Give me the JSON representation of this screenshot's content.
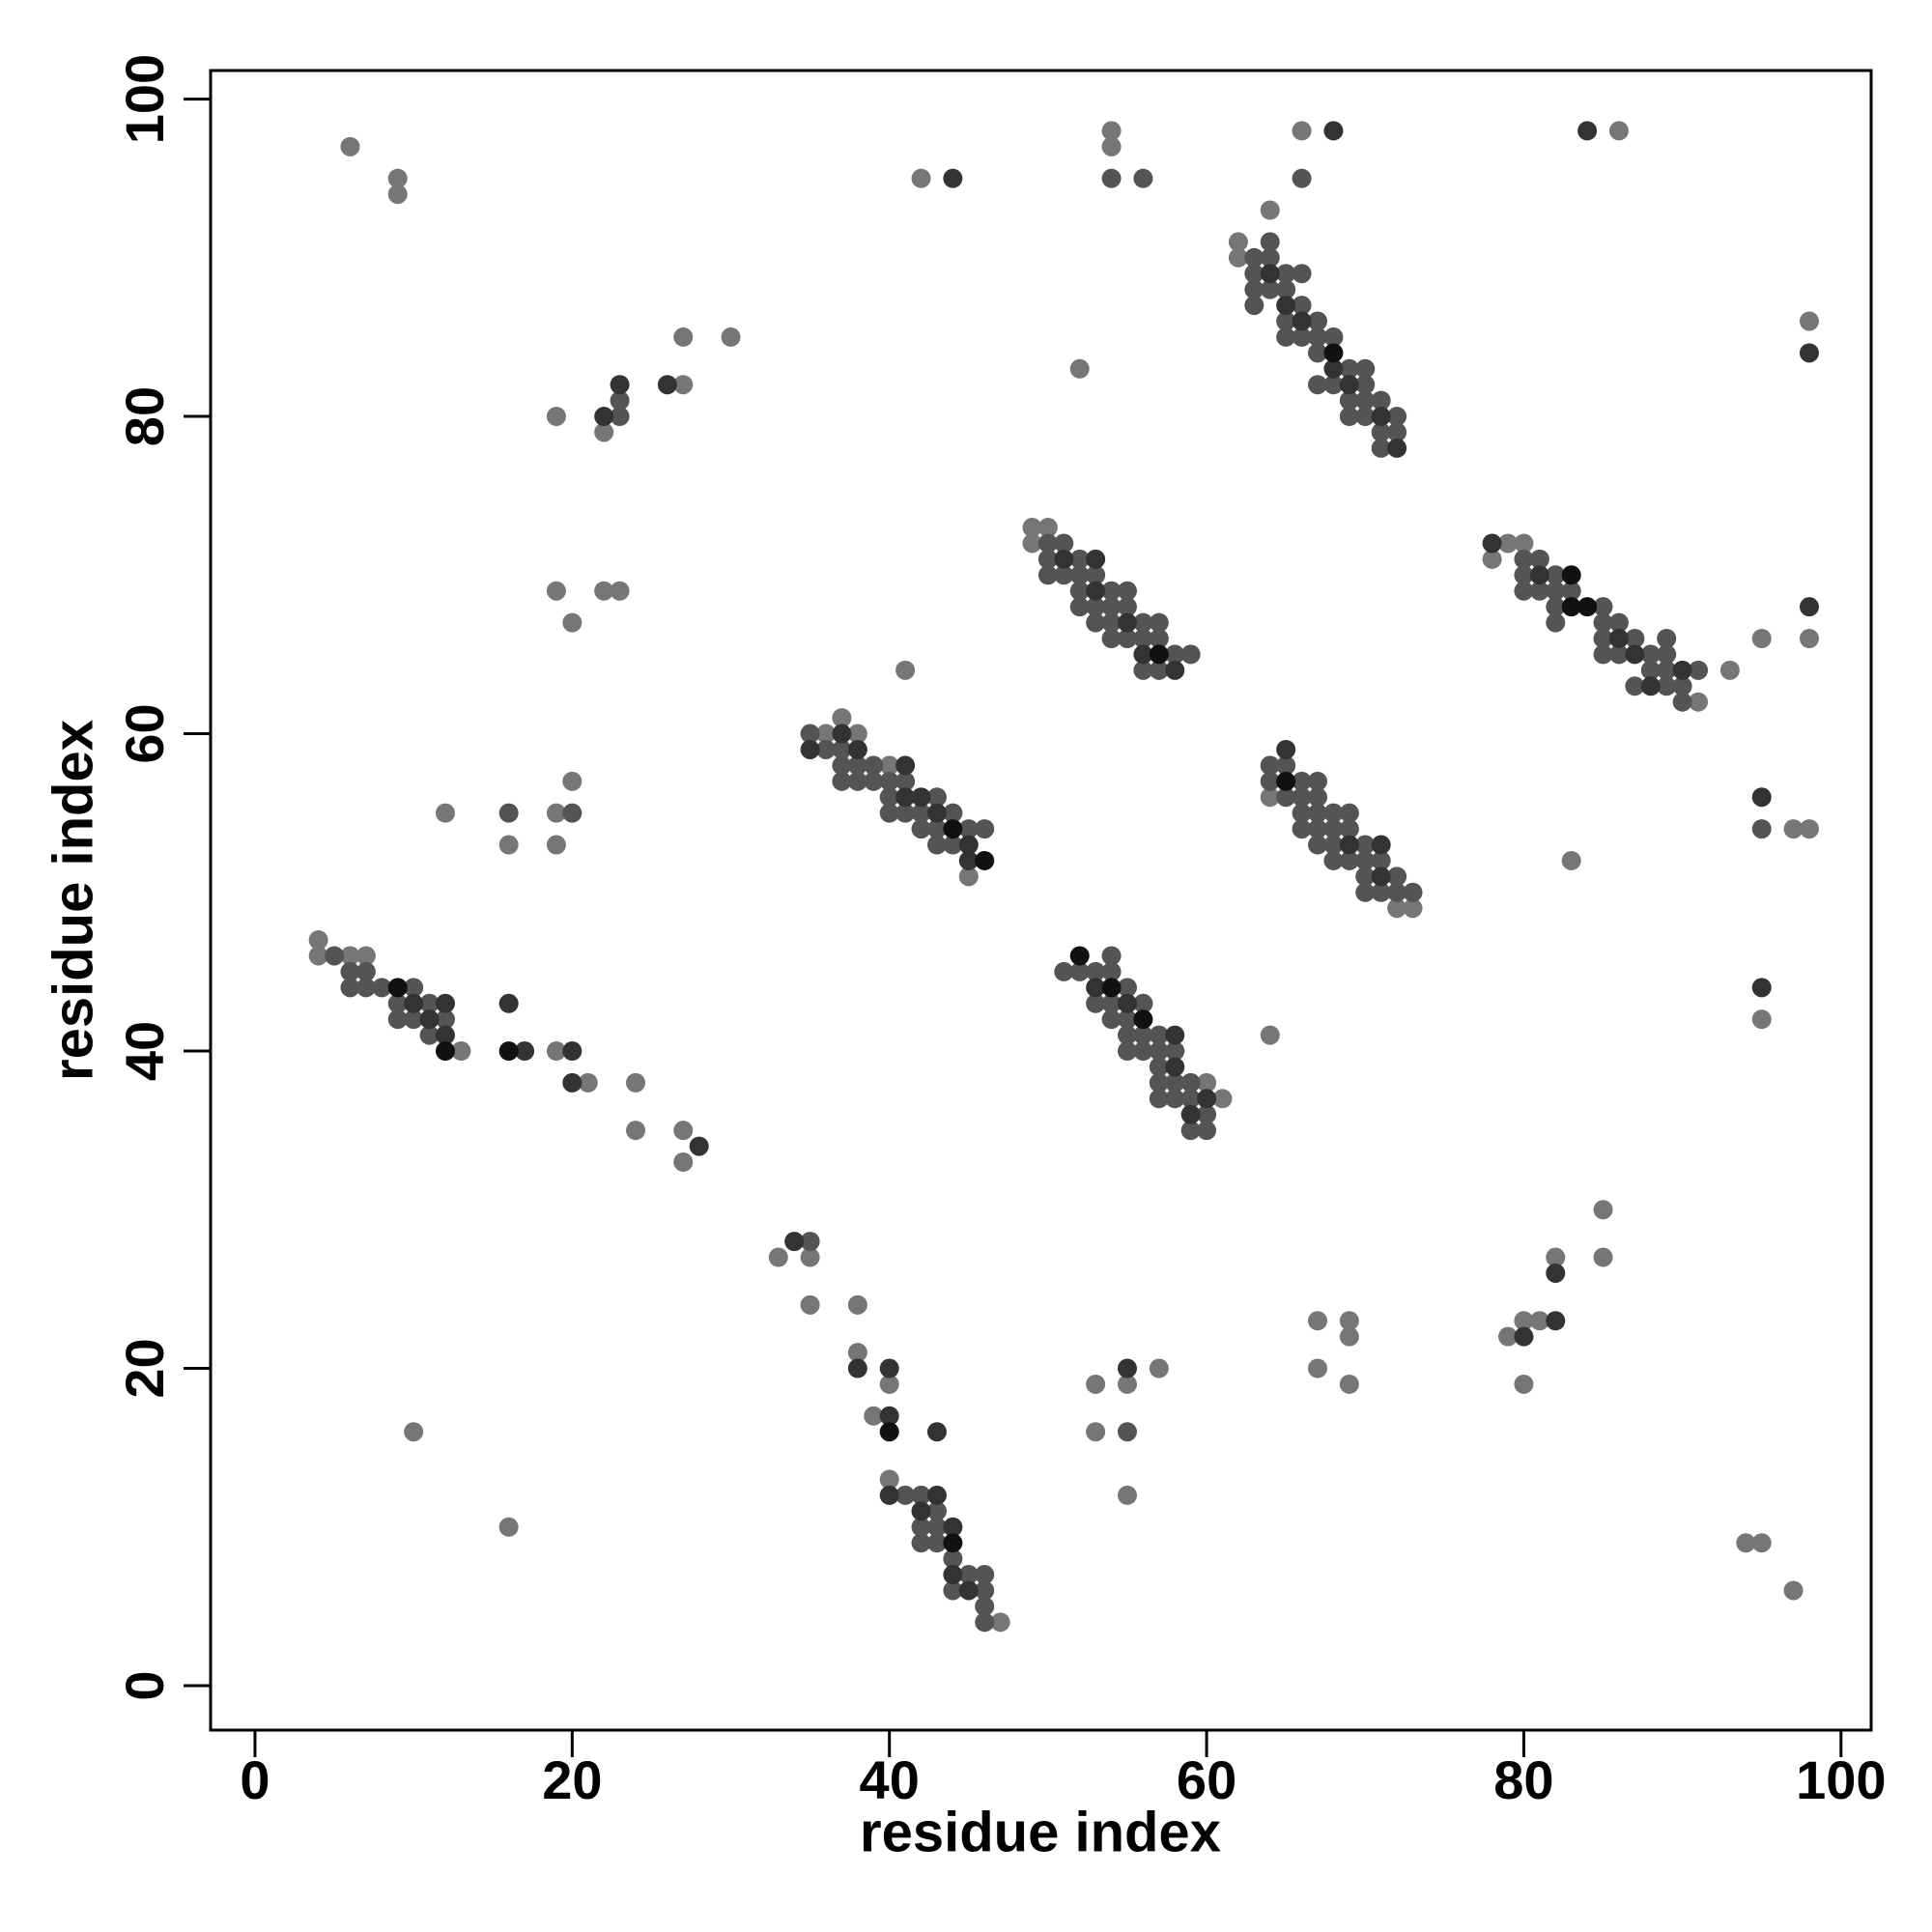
{
  "chart_data": {
    "type": "scatter",
    "xlabel": "residue index",
    "ylabel": "residue index",
    "xlim": [
      -2.8,
      101.9
    ],
    "ylim": [
      -2.8,
      101.8
    ],
    "xticks": [
      0,
      20,
      40,
      60,
      80,
      100
    ],
    "yticks": [
      0,
      20,
      40,
      60,
      80,
      100
    ],
    "series": [
      {
        "color": "#767676",
        "x": [
          6,
          9,
          9,
          42,
          54,
          54,
          66,
          86,
          64,
          52,
          19,
          22,
          27,
          27,
          30,
          98,
          98,
          95,
          19,
          20,
          22,
          23,
          41,
          12,
          16,
          19,
          19,
          20,
          83,
          97,
          98,
          13,
          19,
          21,
          24,
          24,
          27,
          27,
          64,
          95,
          33,
          35,
          35,
          38,
          38,
          39,
          40,
          40,
          10,
          16,
          53,
          53,
          55,
          57,
          55,
          67,
          67,
          69,
          69,
          69,
          79,
          80,
          80,
          81,
          82,
          85,
          85,
          94,
          95,
          97,
          4,
          49,
          62,
          62,
          47,
          91,
          93,
          73,
          61,
          49,
          50,
          78,
          79,
          80,
          37,
          38,
          36,
          4,
          6,
          7,
          64,
          72,
          60,
          40,
          45
        ],
        "values": [
          97,
          95,
          94,
          95,
          98,
          97,
          98,
          98,
          93,
          83,
          80,
          79,
          82,
          85,
          85,
          86,
          66,
          66,
          69,
          67,
          69,
          69,
          64,
          55,
          53,
          55,
          53,
          57,
          52,
          54,
          54,
          40,
          40,
          38,
          38,
          35,
          35,
          33,
          41,
          42,
          27,
          27,
          24,
          24,
          21,
          17,
          19,
          13,
          16,
          10,
          19,
          16,
          19,
          20,
          12,
          23,
          20,
          23,
          22,
          19,
          22,
          23,
          19,
          23,
          27,
          30,
          27,
          9,
          9,
          6,
          47,
          73,
          91,
          90,
          4,
          62,
          64,
          49,
          37,
          72,
          73,
          71,
          72,
          72,
          61,
          60,
          60,
          46,
          46,
          46,
          56,
          49,
          38,
          58,
          51
        ]
      },
      {
        "color": "#545454",
        "x": [
          63,
          63,
          63,
          63,
          64,
          64,
          64,
          65,
          65,
          65,
          65,
          66,
          66,
          66,
          67,
          67,
          67,
          67,
          68,
          68,
          69,
          69,
          69,
          70,
          70,
          70,
          70,
          71,
          71,
          72,
          72,
          71,
          54,
          56,
          66,
          23,
          23,
          20,
          16,
          95,
          35,
          55,
          50,
          50,
          50,
          51,
          51,
          52,
          52,
          52,
          52,
          53,
          53,
          53,
          54,
          54,
          54,
          54,
          55,
          55,
          55,
          56,
          56,
          56,
          57,
          57,
          57,
          58,
          59,
          80,
          80,
          80,
          81,
          81,
          82,
          82,
          82,
          82,
          83,
          85,
          85,
          85,
          85,
          86,
          86,
          87,
          87,
          88,
          88,
          89,
          89,
          89,
          89,
          90,
          90,
          91,
          35,
          36,
          37,
          37,
          37,
          38,
          38,
          39,
          39,
          40,
          40,
          40,
          41,
          41,
          42,
          42,
          43,
          43,
          43,
          44,
          44,
          45,
          46,
          64,
          64,
          65,
          65,
          66,
          66,
          66,
          66,
          67,
          67,
          67,
          67,
          67,
          68,
          68,
          68,
          68,
          69,
          69,
          69,
          70,
          70,
          70,
          70,
          71,
          71,
          72,
          72,
          73,
          5,
          6,
          6,
          7,
          7,
          8,
          9,
          9,
          10,
          10,
          11,
          11,
          12,
          51,
          52,
          53,
          53,
          54,
          54,
          54,
          54,
          55,
          55,
          55,
          55,
          56,
          56,
          56,
          57,
          57,
          57,
          57,
          57,
          58,
          58,
          58,
          59,
          59,
          59,
          60,
          60,
          41,
          42,
          42,
          42,
          43,
          43,
          43,
          44,
          44,
          45,
          46,
          46,
          46,
          46
        ],
        "values": [
          90,
          89,
          88,
          87,
          91,
          90,
          88,
          89,
          88,
          86,
          85,
          89,
          87,
          85,
          86,
          85,
          84,
          82,
          85,
          82,
          83,
          81,
          80,
          83,
          82,
          81,
          80,
          81,
          79,
          80,
          79,
          78,
          95,
          95,
          95,
          81,
          80,
          55,
          55,
          54,
          28,
          16,
          72,
          71,
          70,
          72,
          70,
          71,
          70,
          69,
          68,
          70,
          68,
          67,
          69,
          68,
          67,
          66,
          69,
          68,
          66,
          67,
          66,
          64,
          67,
          66,
          64,
          65,
          65,
          71,
          70,
          69,
          71,
          69,
          70,
          69,
          68,
          67,
          69,
          68,
          67,
          66,
          65,
          67,
          65,
          66,
          63,
          65,
          64,
          66,
          65,
          64,
          63,
          63,
          62,
          64,
          60,
          59,
          59,
          58,
          57,
          58,
          57,
          58,
          57,
          57,
          56,
          55,
          57,
          55,
          55,
          54,
          56,
          54,
          53,
          55,
          53,
          54,
          54,
          58,
          57,
          58,
          56,
          57,
          56,
          55,
          54,
          57,
          56,
          55,
          54,
          53,
          55,
          54,
          53,
          52,
          55,
          54,
          52,
          53,
          52,
          51,
          50,
          52,
          50,
          51,
          50,
          50,
          46,
          45,
          44,
          45,
          44,
          44,
          43,
          42,
          44,
          42,
          43,
          41,
          42,
          45,
          45,
          45,
          43,
          46,
          45,
          43,
          42,
          44,
          42,
          41,
          40,
          43,
          41,
          40,
          41,
          40,
          39,
          38,
          37,
          40,
          38,
          37,
          38,
          37,
          35,
          36,
          35,
          12,
          12,
          10,
          9,
          11,
          10,
          9,
          8,
          6,
          7,
          7,
          6,
          5,
          4
        ]
      },
      {
        "color": "#333333",
        "x": [
          44,
          68,
          84,
          22,
          23,
          26,
          98,
          98,
          16,
          17,
          20,
          20,
          28,
          95,
          34,
          38,
          40,
          40,
          43,
          40,
          55,
          80,
          82,
          82,
          64,
          65,
          66,
          68,
          69,
          71,
          72,
          51,
          53,
          53,
          55,
          56,
          58,
          78,
          81,
          86,
          87,
          90,
          88,
          35,
          37,
          38,
          41,
          41,
          42,
          43,
          45,
          45,
          65,
          69,
          71,
          71,
          10,
          12,
          11,
          12,
          53,
          55,
          58,
          58,
          59,
          60,
          42,
          43,
          44,
          44,
          45,
          95
        ],
        "values": [
          95,
          98,
          98,
          80,
          82,
          82,
          84,
          68,
          43,
          40,
          40,
          38,
          34,
          44,
          28,
          20,
          20,
          17,
          16,
          12,
          20,
          22,
          26,
          23,
          89,
          87,
          86,
          83,
          82,
          80,
          78,
          71,
          71,
          69,
          67,
          65,
          64,
          72,
          70,
          66,
          65,
          64,
          63,
          59,
          60,
          59,
          58,
          56,
          56,
          55,
          53,
          52,
          59,
          53,
          53,
          51,
          43,
          43,
          42,
          41,
          44,
          43,
          41,
          39,
          36,
          37,
          11,
          12,
          10,
          7,
          6,
          56
        ]
      },
      {
        "color": "#111111",
        "x": [
          57,
          83,
          83,
          84,
          44,
          46,
          65,
          9,
          12,
          16,
          52,
          54,
          56,
          40,
          44,
          68
        ],
        "values": [
          65,
          70,
          68,
          68,
          54,
          52,
          57,
          44,
          40,
          40,
          46,
          44,
          42,
          16,
          9,
          84
        ]
      }
    ]
  }
}
